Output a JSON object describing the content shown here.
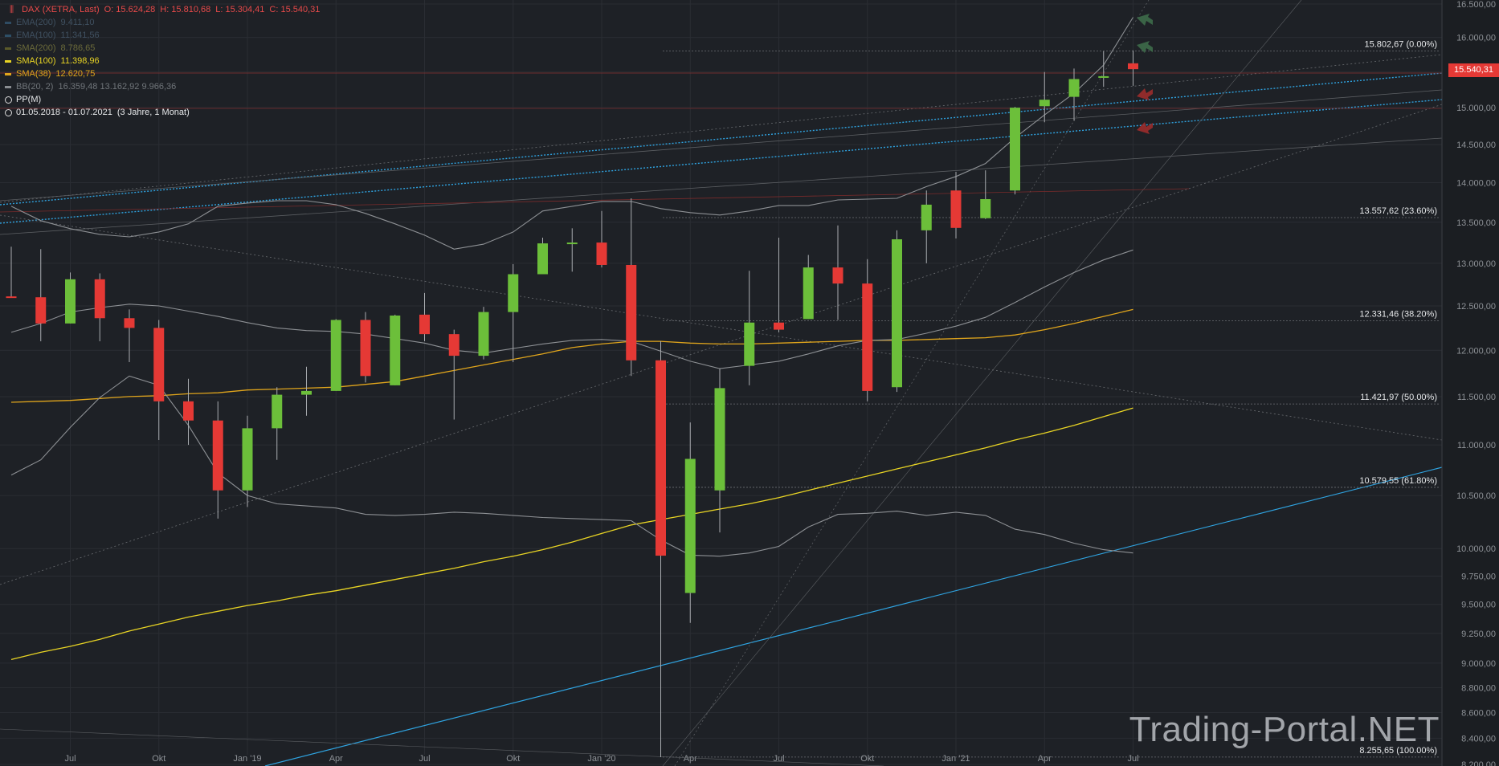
{
  "instrument": {
    "icon": "candles-icon",
    "title": "DAX (XETRA, Last)",
    "ohlc": {
      "o": "O: 15.624,28",
      "h": "H: 15.810,68",
      "l": "L: 15.304,41",
      "c": "C: 15.540,31"
    }
  },
  "legend": [
    {
      "label": "EMA(200)",
      "values": "9.411,10",
      "color": "#2f4c63",
      "dim": true
    },
    {
      "label": "EMA(100)",
      "values": "11.341,56",
      "color": "#2e4f66",
      "dim": true
    },
    {
      "label": "SMA(200)",
      "values": "8.786,65",
      "color": "#5b5a2a",
      "dim": true
    },
    {
      "label": "SMA(100)",
      "values": "11.398,96",
      "color": "#e8d424",
      "dim": false
    },
    {
      "label": "SMA(38)",
      "values": "12.620,75",
      "color": "#e0a51c",
      "dim": false
    },
    {
      "label": "BB(20, 2)",
      "values": "16.359,48  13.162,92  9.966,36",
      "color": "#8a8d91",
      "dim": true
    },
    {
      "label": "PP(M)",
      "values": "",
      "color": "#dddddd",
      "dim": false,
      "icon": "target-icon"
    },
    {
      "label": "01.05.2018 - 01.07.2021",
      "values": "(3 Jahre, 1 Monat)",
      "color": "#dddddd",
      "dim": false,
      "icon": "clock-icon"
    }
  ],
  "current_price": "15.540,31",
  "watermark": "Trading-Portal.NET",
  "colors": {
    "background": "#1e2126",
    "up": "#6cbf3a",
    "down": "#e53935",
    "bb": "#8d9094",
    "sma38": "#e0a51c",
    "sma100": "#e8d424",
    "trend_blue": "#2fa3e0"
  },
  "chart_data": {
    "type": "candlestick",
    "title": "DAX (XETRA, Last)",
    "x_tick_labels": [
      "Jul",
      "Okt",
      "Jan '19",
      "Apr",
      "Jul",
      "Okt",
      "Jan '20",
      "Apr",
      "Jul",
      "Okt",
      "Jan '21",
      "Apr",
      "Jul"
    ],
    "y_tick_labels": [
      "16.500,00",
      "16.000,00",
      "15.500,00",
      "15.000,00",
      "14.500,00",
      "14.000,00",
      "13.500,00",
      "13.000,00",
      "12.500,00",
      "12.000,00",
      "11.500,00",
      "11.000,00",
      "10.500,00",
      "10.000,00",
      "9.750,00",
      "9.500,00",
      "9.250,00",
      "9.000,00",
      "8.800,00",
      "8.600,00",
      "8.400,00",
      "8.200,00"
    ],
    "y_scale": "log",
    "ylim": [
      8200,
      16500
    ],
    "fibonacci": [
      {
        "label": "15.802,67 (0.00%)",
        "value": 15802.67
      },
      {
        "label": "13.557,62 (23.60%)",
        "value": 13557.62
      },
      {
        "label": "12.331,46 (38.20%)",
        "value": 12331.46
      },
      {
        "label": "11.421,97 (50.00%)",
        "value": 11421.97
      },
      {
        "label": "10.579,55 (61.80%)",
        "value": 10579.55
      },
      {
        "label": "8.255,65 (100.00%)",
        "value": 8255.65
      }
    ],
    "candles": [
      {
        "month": "2018-05",
        "o": 12610,
        "h": 13200,
        "l": 12600,
        "c": 12600
      },
      {
        "month": "2018-06",
        "o": 12600,
        "h": 13170,
        "l": 12100,
        "c": 12300
      },
      {
        "month": "2018-07",
        "o": 12300,
        "h": 12890,
        "l": 12300,
        "c": 12810
      },
      {
        "month": "2018-08",
        "o": 12810,
        "h": 12880,
        "l": 12100,
        "c": 12360
      },
      {
        "month": "2018-09",
        "o": 12360,
        "h": 12460,
        "l": 11870,
        "c": 12250
      },
      {
        "month": "2018-10",
        "o": 12250,
        "h": 12340,
        "l": 11050,
        "c": 11450
      },
      {
        "month": "2018-11",
        "o": 11450,
        "h": 11690,
        "l": 11000,
        "c": 11250
      },
      {
        "month": "2018-12",
        "o": 11250,
        "h": 11450,
        "l": 10280,
        "c": 10550
      },
      {
        "month": "2019-01",
        "o": 10550,
        "h": 11300,
        "l": 10390,
        "c": 11170
      },
      {
        "month": "2019-02",
        "o": 11170,
        "h": 11600,
        "l": 10850,
        "c": 11520
      },
      {
        "month": "2019-03",
        "o": 11520,
        "h": 11820,
        "l": 11300,
        "c": 11560
      },
      {
        "month": "2019-04",
        "o": 11560,
        "h": 12350,
        "l": 11560,
        "c": 12340
      },
      {
        "month": "2019-05",
        "o": 12340,
        "h": 12430,
        "l": 11650,
        "c": 11720
      },
      {
        "month": "2019-06",
        "o": 11620,
        "h": 12400,
        "l": 11620,
        "c": 12390
      },
      {
        "month": "2019-07",
        "o": 12400,
        "h": 12650,
        "l": 12100,
        "c": 12180
      },
      {
        "month": "2019-08",
        "o": 12180,
        "h": 12230,
        "l": 11260,
        "c": 11940
      },
      {
        "month": "2019-09",
        "o": 11940,
        "h": 12490,
        "l": 11900,
        "c": 12430
      },
      {
        "month": "2019-10",
        "o": 12430,
        "h": 12990,
        "l": 11870,
        "c": 12870
      },
      {
        "month": "2019-11",
        "o": 12870,
        "h": 13310,
        "l": 12870,
        "c": 13240
      },
      {
        "month": "2019-12",
        "o": 13240,
        "h": 13425,
        "l": 12900,
        "c": 13250
      },
      {
        "month": "2020-01",
        "o": 13250,
        "h": 13640,
        "l": 12950,
        "c": 12980
      },
      {
        "month": "2020-02",
        "o": 12980,
        "h": 13800,
        "l": 11720,
        "c": 11890
      },
      {
        "month": "2020-03",
        "o": 11890,
        "h": 12100,
        "l": 8255,
        "c": 9935
      },
      {
        "month": "2020-04",
        "o": 9600,
        "h": 11230,
        "l": 9340,
        "c": 10860
      },
      {
        "month": "2020-05",
        "o": 10550,
        "h": 11800,
        "l": 10150,
        "c": 11590
      },
      {
        "month": "2020-06",
        "o": 11830,
        "h": 12910,
        "l": 11620,
        "c": 12310
      },
      {
        "month": "2020-07",
        "o": 12310,
        "h": 13310,
        "l": 12200,
        "c": 12230
      },
      {
        "month": "2020-08",
        "o": 12350,
        "h": 13100,
        "l": 12350,
        "c": 12950
      },
      {
        "month": "2020-09",
        "o": 12950,
        "h": 13460,
        "l": 12340,
        "c": 12760
      },
      {
        "month": "2020-10",
        "o": 12760,
        "h": 13050,
        "l": 11450,
        "c": 11560
      },
      {
        "month": "2020-11",
        "o": 11600,
        "h": 13400,
        "l": 11550,
        "c": 13290
      },
      {
        "month": "2020-12",
        "o": 13400,
        "h": 13900,
        "l": 13000,
        "c": 13720
      },
      {
        "month": "2021-01",
        "o": 13900,
        "h": 14140,
        "l": 13300,
        "c": 13430
      },
      {
        "month": "2021-02",
        "o": 13550,
        "h": 14160,
        "l": 13540,
        "c": 13790
      },
      {
        "month": "2021-03",
        "o": 13900,
        "h": 15010,
        "l": 13850,
        "c": 15000
      },
      {
        "month": "2021-04",
        "o": 15020,
        "h": 15500,
        "l": 14800,
        "c": 15110
      },
      {
        "month": "2021-05",
        "o": 15150,
        "h": 15550,
        "l": 14820,
        "c": 15400
      },
      {
        "month": "2021-06",
        "o": 15420,
        "h": 15800,
        "l": 15290,
        "c": 15440
      },
      {
        "month": "2021-07",
        "o": 15624.28,
        "h": 15810.68,
        "l": 15304.41,
        "c": 15540.31
      }
    ],
    "bb_upper": [
      13700,
      13520,
      13420,
      13350,
      13320,
      13380,
      13480,
      13700,
      13740,
      13770,
      13770,
      13720,
      13610,
      13480,
      13340,
      13170,
      13230,
      13380,
      13640,
      13700,
      13760,
      13760,
      13670,
      13620,
      13590,
      13640,
      13710,
      13710,
      13780,
      13790,
      13800,
      13950,
      14080,
      14250,
      14590,
      14900,
      15200,
      15600,
      16300
    ],
    "bb_middle": [
      12200,
      12300,
      12430,
      12480,
      12520,
      12500,
      12440,
      12380,
      12310,
      12250,
      12220,
      12210,
      12180,
      12130,
      12080,
      12000,
      11970,
      12020,
      12070,
      12110,
      12120,
      12100,
      11990,
      11880,
      11800,
      11840,
      11880,
      11960,
      12050,
      12110,
      12120,
      12190,
      12270,
      12370,
      12540,
      12720,
      12890,
      13040,
      13160
    ],
    "bb_lower": [
      10700,
      10850,
      11180,
      11490,
      11720,
      11620,
      11200,
      10720,
      10500,
      10420,
      10400,
      10380,
      10320,
      10310,
      10320,
      10340,
      10330,
      10310,
      10290,
      10280,
      10270,
      10260,
      10080,
      9940,
      9930,
      9960,
      10020,
      10200,
      10320,
      10330,
      10350,
      10310,
      10340,
      10310,
      10180,
      10130,
      10050,
      9990,
      9960
    ],
    "sma38": [
      11440,
      11450,
      11460,
      11480,
      11500,
      11510,
      11530,
      11540,
      11570,
      11580,
      11590,
      11600,
      11630,
      11660,
      11720,
      11780,
      11840,
      11900,
      11960,
      12030,
      12070,
      12100,
      12100,
      12080,
      12070,
      12070,
      12080,
      12090,
      12100,
      12110,
      12110,
      12120,
      12130,
      12140,
      12170,
      12230,
      12300,
      12380,
      12460
    ],
    "sma100": [
      9030,
      9090,
      9140,
      9200,
      9270,
      9330,
      9390,
      9440,
      9490,
      9530,
      9580,
      9620,
      9670,
      9720,
      9770,
      9820,
      9880,
      9930,
      9990,
      10060,
      10140,
      10220,
      10270,
      10320,
      10370,
      10420,
      10480,
      10550,
      10620,
      10690,
      10760,
      10830,
      10900,
      10970,
      11050,
      11120,
      11200,
      11290,
      11380
    ]
  }
}
